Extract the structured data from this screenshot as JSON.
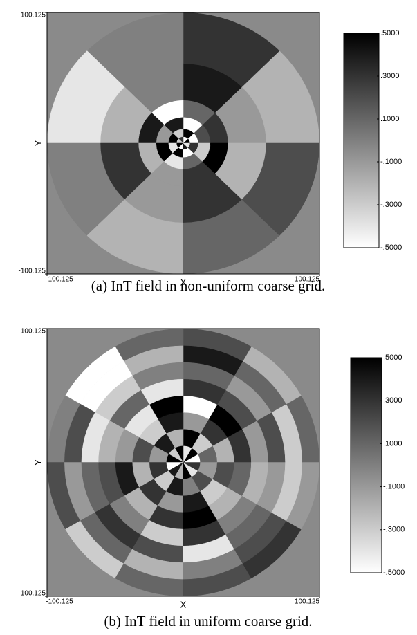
{
  "chart_data": [
    {
      "type": "polar-grid",
      "caption": "(a) InT field in non-uniform coarse grid.",
      "xlabel": "X",
      "ylabel": "Y",
      "xlim": [
        -100.125,
        100.125
      ],
      "ylim": [
        -100.125,
        100.125
      ],
      "xticks": [
        -100.125,
        100.125
      ],
      "yticks": [
        -100.125,
        100.125
      ],
      "clim": [
        -0.5,
        0.5
      ],
      "cticks": [
        {
          "value": 0.5,
          "label": ".5000"
        },
        {
          "value": 0.3,
          "label": ".3000"
        },
        {
          "value": 0.1,
          "label": ".1000"
        },
        {
          "value": -0.1,
          "label": "-.1000"
        },
        {
          "value": -0.3,
          "label": "-.3000"
        },
        {
          "value": -0.5,
          "label": "-.5000"
        }
      ],
      "radii": [
        0,
        5,
        11,
        20,
        33,
        61,
        100
      ],
      "values": [
        [
          0.5,
          -0.5,
          0.3,
          -0.3,
          0.5,
          -0.5,
          0.4,
          -0.4
        ],
        [
          -0.5,
          0.5,
          -0.3,
          0.5,
          -0.4,
          0.5,
          -0.5,
          0.3
        ],
        [
          0.2,
          -0.5,
          0.4,
          -0.1,
          0.5,
          -0.4,
          0.1,
          -0.3
        ],
        [
          0.3,
          0.1,
          -0.5,
          0.4,
          -0.2,
          -0.1,
          0.3,
          0.5
        ],
        [
          -0.1,
          0.4,
          0.0,
          -0.2,
          0.3,
          -0.1,
          0.3,
          -0.2
        ],
        [
          -0.2,
          0.3,
          0.0,
          -0.4,
          0.0,
          -0.2,
          0.1,
          0.2
        ]
      ]
    },
    {
      "type": "polar-grid",
      "caption": "(b) InT field in uniform coarse grid.",
      "xlabel": "X",
      "ylabel": "Y",
      "xlim": [
        -100.125,
        100.125
      ],
      "ylim": [
        -100.125,
        100.125
      ],
      "xticks": [
        -100.125,
        100.125
      ],
      "yticks": [
        -100.125,
        100.125
      ],
      "clim": [
        -0.5,
        0.5
      ],
      "cticks": [
        {
          "value": 0.5,
          "label": ".5000"
        },
        {
          "value": 0.3,
          "label": ".3000"
        },
        {
          "value": 0.1,
          "label": ".1000"
        },
        {
          "value": -0.1,
          "label": "-.1000"
        },
        {
          "value": -0.3,
          "label": "-.3000"
        },
        {
          "value": -0.5,
          "label": "-.5000"
        }
      ],
      "radii": [
        0,
        12.5,
        25,
        37.5,
        50,
        62.5,
        75,
        87.5,
        100
      ],
      "values": [
        [
          -0.5,
          0.5,
          -0.4,
          0.5,
          -0.3,
          0.5,
          -0.5,
          0.4,
          -0.2,
          0.5,
          -0.4,
          0.3
        ],
        [
          0.1,
          -0.3,
          0.5,
          -0.2,
          0.4,
          -0.1,
          0.3,
          -0.3,
          0.4,
          0.0,
          0.2,
          -0.1
        ],
        [
          -0.2,
          0.3,
          -0.1,
          0.4,
          -0.3,
          0.2,
          -0.2,
          0.3,
          -0.1,
          0.4,
          -0.3,
          0.2
        ],
        [
          0.3,
          0.5,
          -0.5,
          0.5,
          -0.4,
          -0.1,
          0.4,
          -0.2,
          0.3,
          0.5,
          -0.2,
          0.1
        ],
        [
          -0.1,
          0.2,
          0.3,
          -0.4,
          0.1,
          -0.2,
          0.2,
          0.0,
          -0.3,
          0.3,
          0.0,
          -0.2
        ],
        [
          0.2,
          -0.1,
          0.1,
          0.0,
          -0.3,
          -0.4,
          0.1,
          0.3,
          0.2,
          -0.4,
          0.1,
          -0.1
        ],
        [
          -0.3,
          0.1,
          0.4,
          -0.2,
          -0.5,
          0.2,
          -0.1,
          0.1,
          -0.2,
          0.0,
          0.2,
          -0.3
        ],
        [
          0.1,
          -0.2,
          0.2,
          0.1,
          -0.5,
          0.0,
          0.2,
          -0.3,
          0.1,
          0.2,
          0.3,
          -0.1
        ]
      ]
    }
  ]
}
